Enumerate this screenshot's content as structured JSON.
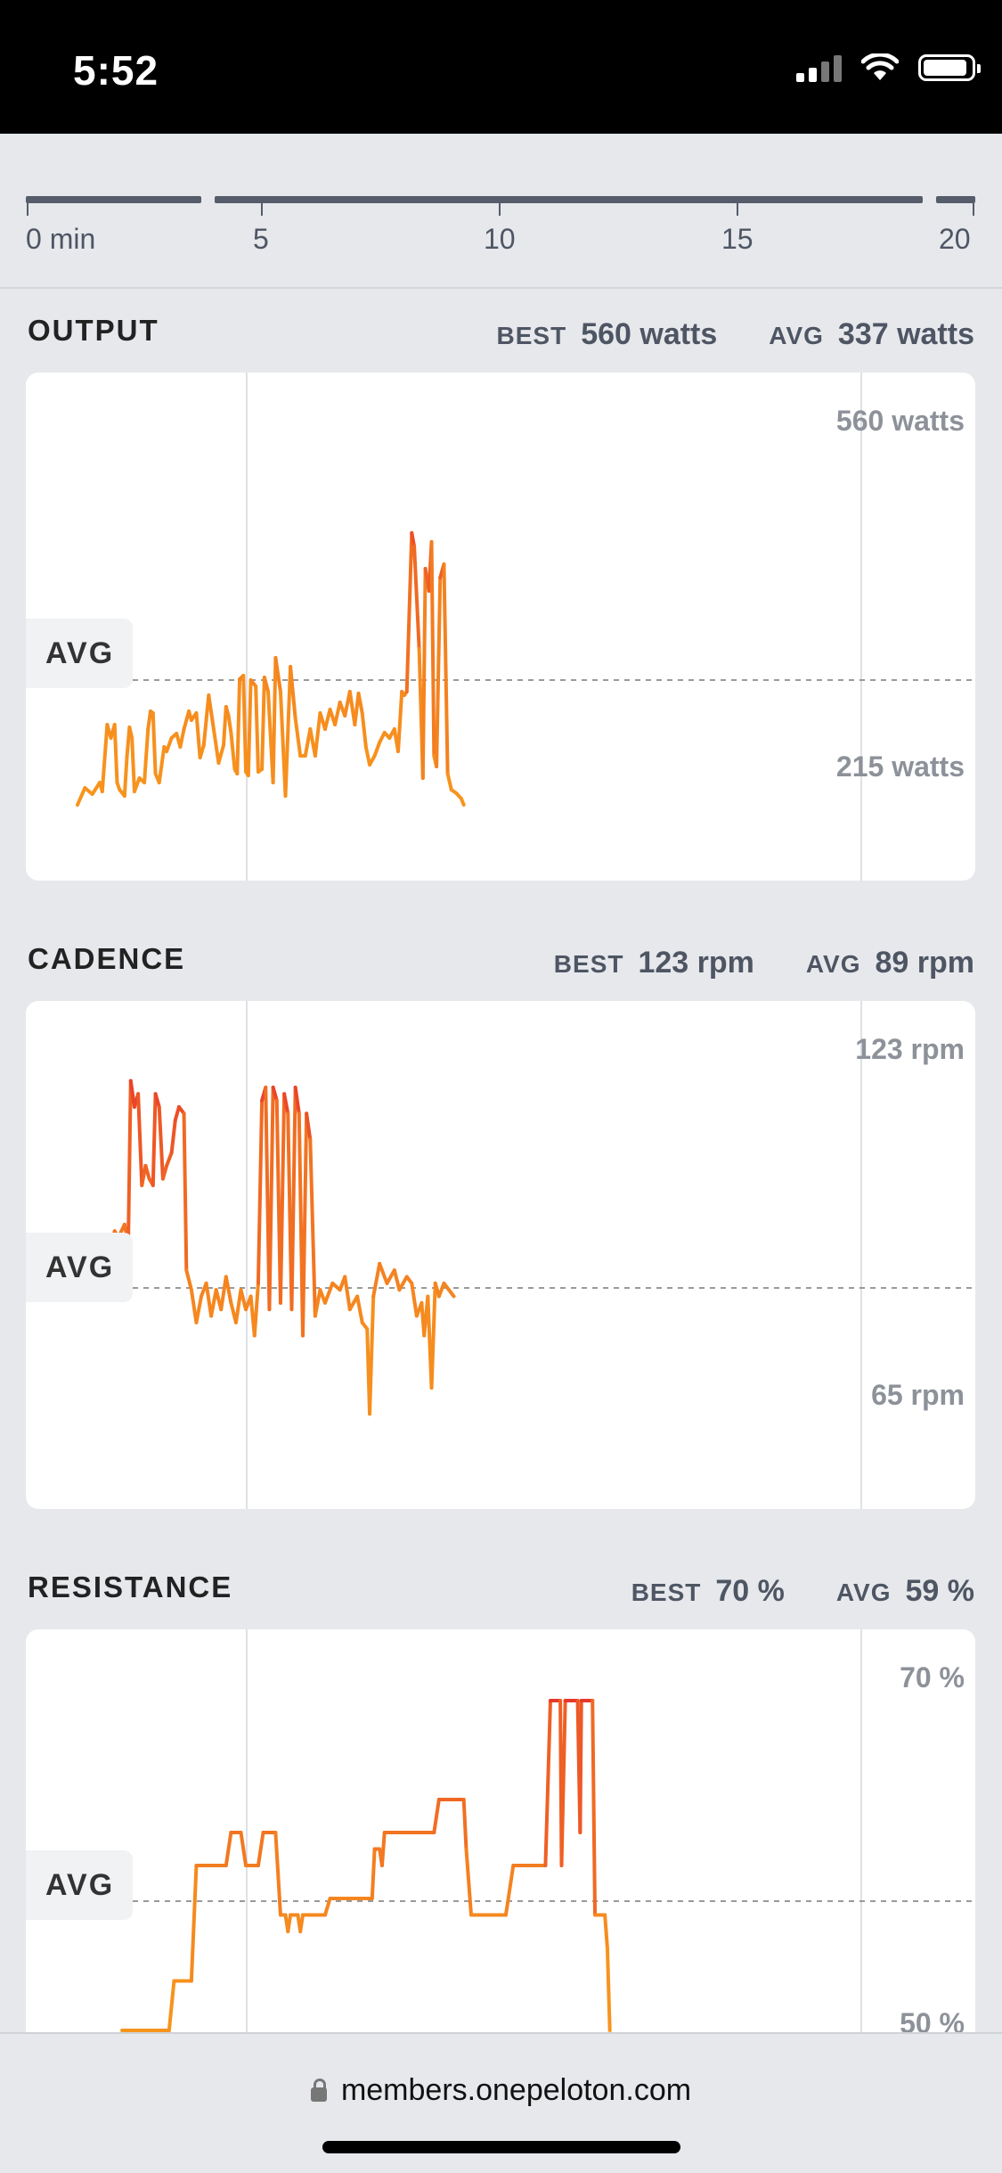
{
  "status_bar": {
    "time": "5:52",
    "icons": [
      "signal-icon",
      "wifi-icon",
      "battery-icon"
    ]
  },
  "timeline": {
    "ticks": [
      "0 min",
      "5",
      "10",
      "15",
      "20"
    ]
  },
  "colors": {
    "low": "#f7941d",
    "high": "#e8382b",
    "avg_line": "#9a9a9a",
    "tag_bg": "#f1f2f4"
  },
  "sections": [
    {
      "title": "OUTPUT",
      "best_label": "BEST",
      "best_value": "560 watts",
      "avg_label": "AVG",
      "avg_value": "337 watts",
      "avg_tag": "AVG",
      "max_label": "560 watts",
      "min_label": "215 watts",
      "chart_data": {
        "type": "line",
        "x_unit": "min",
        "ylim": [
          215,
          560
        ],
        "avg": 337,
        "points": [
          [
            0,
            215
          ],
          [
            0.3,
            234
          ],
          [
            0.6,
            227
          ],
          [
            0.9,
            240
          ],
          [
            1.0,
            230
          ],
          [
            1.2,
            305
          ],
          [
            1.35,
            290
          ],
          [
            1.5,
            305
          ],
          [
            1.6,
            240
          ],
          [
            1.7,
            232
          ],
          [
            1.9,
            225
          ],
          [
            2.0,
            270
          ],
          [
            2.1,
            302
          ],
          [
            2.2,
            290
          ],
          [
            2.3,
            230
          ],
          [
            2.5,
            245
          ],
          [
            2.7,
            240
          ],
          [
            2.85,
            300
          ],
          [
            2.95,
            320
          ],
          [
            3.05,
            318
          ],
          [
            3.15,
            250
          ],
          [
            3.3,
            240
          ],
          [
            3.5,
            280
          ],
          [
            3.6,
            275
          ],
          [
            3.8,
            290
          ],
          [
            4.0,
            295
          ],
          [
            4.15,
            280
          ],
          [
            4.3,
            300
          ],
          [
            4.5,
            320
          ],
          [
            4.6,
            310
          ],
          [
            4.8,
            318
          ],
          [
            4.95,
            268
          ],
          [
            5.1,
            282
          ],
          [
            5.3,
            338
          ],
          [
            5.5,
            300
          ],
          [
            5.7,
            262
          ],
          [
            5.9,
            282
          ],
          [
            6.0,
            325
          ],
          [
            6.1,
            315
          ],
          [
            6.2,
            296
          ],
          [
            6.35,
            255
          ],
          [
            6.45,
            250
          ],
          [
            6.55,
            356
          ],
          [
            6.7,
            360
          ],
          [
            6.8,
            252
          ],
          [
            6.9,
            248
          ],
          [
            7.0,
            355
          ],
          [
            7.2,
            348
          ],
          [
            7.3,
            252
          ],
          [
            7.45,
            255
          ],
          [
            7.55,
            358
          ],
          [
            7.7,
            342
          ],
          [
            7.9,
            240
          ],
          [
            8.0,
            380
          ],
          [
            8.2,
            342
          ],
          [
            8.4,
            225
          ],
          [
            8.6,
            370
          ],
          [
            8.8,
            312
          ],
          [
            9.0,
            270
          ],
          [
            9.2,
            270
          ],
          [
            9.4,
            300
          ],
          [
            9.6,
            270
          ],
          [
            9.8,
            318
          ],
          [
            10.0,
            300
          ],
          [
            10.2,
            322
          ],
          [
            10.4,
            305
          ],
          [
            10.6,
            330
          ],
          [
            10.8,
            315
          ],
          [
            11.0,
            342
          ],
          [
            11.2,
            305
          ],
          [
            11.35,
            340
          ],
          [
            11.5,
            318
          ],
          [
            11.65,
            280
          ],
          [
            11.8,
            260
          ],
          [
            12.0,
            270
          ],
          [
            12.2,
            285
          ],
          [
            12.4,
            296
          ],
          [
            12.6,
            290
          ],
          [
            12.8,
            300
          ],
          [
            12.95,
            275
          ],
          [
            13.1,
            342
          ],
          [
            13.2,
            338
          ],
          [
            13.3,
            342
          ],
          [
            13.5,
            520
          ],
          [
            13.6,
            505
          ],
          [
            13.8,
            390
          ],
          [
            13.95,
            245
          ],
          [
            14.05,
            480
          ],
          [
            14.2,
            455
          ],
          [
            14.3,
            510
          ],
          [
            14.4,
            270
          ],
          [
            14.5,
            258
          ],
          [
            14.65,
            470
          ],
          [
            14.8,
            485
          ],
          [
            14.95,
            250
          ],
          [
            15.1,
            232
          ],
          [
            15.3,
            228
          ],
          [
            15.5,
            222
          ],
          [
            15.6,
            215
          ]
        ]
      }
    },
    {
      "title": "CADENCE",
      "best_label": "BEST",
      "best_value": "123 rpm",
      "avg_label": "AVG",
      "avg_value": "89 rpm",
      "avg_tag": "AVG",
      "max_label": "123 rpm",
      "min_label": "65 rpm",
      "chart_data": {
        "type": "line",
        "x_unit": "min",
        "ylim": [
          65,
          123
        ],
        "avg": 89,
        "points": [
          [
            1.3,
            95
          ],
          [
            1.5,
            98
          ],
          [
            1.65,
            97
          ],
          [
            1.9,
            99
          ],
          [
            2.05,
            96
          ],
          [
            2.15,
            121
          ],
          [
            2.3,
            117
          ],
          [
            2.45,
            119
          ],
          [
            2.6,
            105
          ],
          [
            2.75,
            108
          ],
          [
            2.9,
            106
          ],
          [
            3.05,
            105
          ],
          [
            3.15,
            119
          ],
          [
            3.3,
            117
          ],
          [
            3.45,
            106
          ],
          [
            3.6,
            108
          ],
          [
            3.8,
            110
          ],
          [
            3.95,
            115
          ],
          [
            4.1,
            117
          ],
          [
            4.3,
            116
          ],
          [
            4.4,
            92
          ],
          [
            4.6,
            89
          ],
          [
            4.8,
            84
          ],
          [
            5.0,
            88
          ],
          [
            5.2,
            90
          ],
          [
            5.4,
            85
          ],
          [
            5.6,
            89
          ],
          [
            5.8,
            86
          ],
          [
            6.0,
            91
          ],
          [
            6.2,
            87
          ],
          [
            6.4,
            84
          ],
          [
            6.6,
            89
          ],
          [
            6.8,
            86
          ],
          [
            7.0,
            88
          ],
          [
            7.15,
            82
          ],
          [
            7.3,
            90
          ],
          [
            7.45,
            118
          ],
          [
            7.6,
            120
          ],
          [
            7.75,
            86
          ],
          [
            7.9,
            120
          ],
          [
            8.05,
            118
          ],
          [
            8.2,
            87
          ],
          [
            8.35,
            119
          ],
          [
            8.5,
            116
          ],
          [
            8.65,
            86
          ],
          [
            8.8,
            120
          ],
          [
            8.95,
            116
          ],
          [
            9.1,
            82
          ],
          [
            9.25,
            116
          ],
          [
            9.4,
            112
          ],
          [
            9.6,
            85
          ],
          [
            9.8,
            89
          ],
          [
            10.0,
            87
          ],
          [
            10.3,
            90
          ],
          [
            10.6,
            89
          ],
          [
            10.8,
            91
          ],
          [
            11.0,
            86
          ],
          [
            11.3,
            88
          ],
          [
            11.5,
            84
          ],
          [
            11.7,
            83
          ],
          [
            11.8,
            70
          ],
          [
            11.95,
            88
          ],
          [
            12.2,
            93
          ],
          [
            12.5,
            90
          ],
          [
            12.8,
            92
          ],
          [
            13.0,
            89
          ],
          [
            13.3,
            91
          ],
          [
            13.5,
            90
          ],
          [
            13.7,
            85
          ],
          [
            13.9,
            87
          ],
          [
            14.0,
            82
          ],
          [
            14.15,
            88
          ],
          [
            14.3,
            74
          ],
          [
            14.45,
            90
          ],
          [
            14.6,
            88
          ],
          [
            14.8,
            90
          ],
          [
            15.0,
            89
          ],
          [
            15.2,
            88
          ]
        ]
      }
    },
    {
      "title": "RESISTANCE",
      "best_label": "BEST",
      "best_value": "70 %",
      "avg_label": "AVG",
      "avg_value": "59 %",
      "avg_tag": "AVG",
      "max_label": "70 %",
      "min_label": "50 %",
      "chart_data": {
        "type": "line",
        "x_unit": "min",
        "ylim": [
          50,
          70
        ],
        "avg": 59,
        "points": [
          [
            1.8,
            50
          ],
          [
            3.7,
            50
          ],
          [
            3.9,
            53
          ],
          [
            4.6,
            53
          ],
          [
            4.8,
            60
          ],
          [
            6.0,
            60
          ],
          [
            6.2,
            62
          ],
          [
            6.6,
            62
          ],
          [
            6.8,
            60
          ],
          [
            7.3,
            60
          ],
          [
            7.5,
            62
          ],
          [
            8.0,
            62
          ],
          [
            8.2,
            57
          ],
          [
            8.4,
            57
          ],
          [
            8.5,
            56
          ],
          [
            8.6,
            57
          ],
          [
            8.9,
            57
          ],
          [
            9.0,
            56
          ],
          [
            9.1,
            57
          ],
          [
            10.0,
            57
          ],
          [
            10.2,
            58
          ],
          [
            11.9,
            58
          ],
          [
            12.0,
            61
          ],
          [
            12.2,
            61
          ],
          [
            12.3,
            60
          ],
          [
            12.4,
            62
          ],
          [
            14.4,
            62
          ],
          [
            14.6,
            64
          ],
          [
            15.6,
            64
          ],
          [
            15.7,
            61
          ],
          [
            15.9,
            57
          ],
          [
            16.4,
            57
          ],
          [
            17.3,
            57
          ],
          [
            17.6,
            60
          ],
          [
            18.9,
            60
          ],
          [
            19.1,
            70
          ],
          [
            19.5,
            70
          ],
          [
            19.55,
            60
          ],
          [
            19.7,
            70
          ],
          [
            20.2,
            70
          ],
          [
            20.3,
            62
          ],
          [
            20.35,
            70
          ],
          [
            20.8,
            70
          ],
          [
            20.9,
            57
          ],
          [
            21.3,
            57
          ],
          [
            21.4,
            55
          ],
          [
            21.5,
            50
          ]
        ]
      }
    }
  ],
  "browser": {
    "url": "members.onepeloton.com"
  }
}
